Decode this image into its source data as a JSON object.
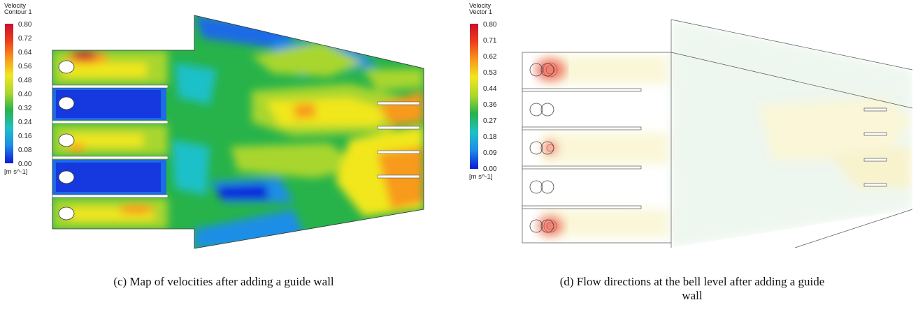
{
  "panel_c": {
    "legend": {
      "title_line1": "Velocity",
      "title_line2": "Contour 1",
      "ticks": [
        "0.80",
        "0.72",
        "0.64",
        "0.56",
        "0.48",
        "0.40",
        "0.32",
        "0.24",
        "0.16",
        "0.08",
        "0.00"
      ],
      "unit": "[m s^-1]"
    },
    "caption": "(c) Map of velocities after adding a guide wall"
  },
  "panel_d": {
    "legend": {
      "title_line1": "Velocity",
      "title_line2": "Vector 1",
      "ticks": [
        "0.80",
        "0.71",
        "0.62",
        "0.53",
        "0.44",
        "0.36",
        "0.27",
        "0.18",
        "0.09",
        "0.00"
      ],
      "unit": "[m s^-1]"
    },
    "caption_line1": "(d) Flow directions at the bell level after adding a guide",
    "caption_line2": "wall"
  },
  "colors": {
    "max": "#c8102e",
    "high": "#f89a1e",
    "mid_high": "#f1e71e",
    "mid": "#27b34a",
    "low": "#1fc0c8",
    "min": "#1018d8"
  }
}
